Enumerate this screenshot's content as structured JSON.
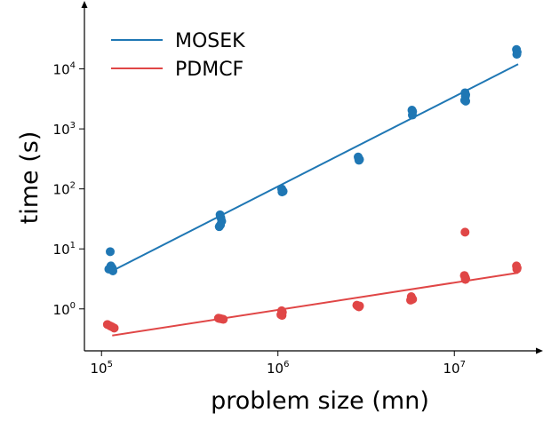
{
  "chart_data": {
    "type": "scatter",
    "xlabel": "problem size (mn)",
    "ylabel": "time (s)",
    "xscale": "log",
    "yscale": "log",
    "xlim": [
      80000,
      28000000
    ],
    "ylim": [
      0.2,
      100000
    ],
    "xticks": [
      {
        "value": 100000,
        "base": "10",
        "exp": "5"
      },
      {
        "value": 1000000,
        "base": "10",
        "exp": "6"
      },
      {
        "value": 10000000,
        "base": "10",
        "exp": "7"
      }
    ],
    "yticks": [
      {
        "value": 1,
        "base": "10",
        "exp": "0"
      },
      {
        "value": 10,
        "base": "10",
        "exp": "1"
      },
      {
        "value": 100,
        "base": "10",
        "exp": "2"
      },
      {
        "value": 1000,
        "base": "10",
        "exp": "3"
      },
      {
        "value": 10000,
        "base": "10",
        "exp": "4"
      }
    ],
    "grid": false,
    "legend_position": "top-left",
    "series": [
      {
        "name": "MOSEK",
        "color": "#1f77b4",
        "points": [
          [
            112000,
            9
          ],
          [
            113000,
            5.2
          ],
          [
            115000,
            4.8
          ],
          [
            110000,
            4.6
          ],
          [
            116000,
            4.3
          ],
          [
            470000,
            37
          ],
          [
            475000,
            33
          ],
          [
            480000,
            29
          ],
          [
            465000,
            23.5
          ],
          [
            472000,
            25
          ],
          [
            1050000,
            100
          ],
          [
            1060000,
            95
          ],
          [
            1070000,
            91
          ],
          [
            1055000,
            89
          ],
          [
            2850000,
            340
          ],
          [
            2870000,
            315
          ],
          [
            2900000,
            310
          ],
          [
            2880000,
            300
          ],
          [
            5750000,
            2050
          ],
          [
            5800000,
            1950
          ],
          [
            5780000,
            1700
          ],
          [
            11500000,
            4000
          ],
          [
            11600000,
            3700
          ],
          [
            11550000,
            3500
          ],
          [
            11450000,
            3000
          ],
          [
            11600000,
            2900
          ],
          [
            22500000,
            21000
          ],
          [
            22700000,
            19000
          ],
          [
            22600000,
            17500
          ]
        ],
        "fit": [
          [
            115000,
            4.3
          ],
          [
            23000000,
            12000
          ]
        ]
      },
      {
        "name": "PDMCF",
        "color": "#e04646",
        "points": [
          [
            108000,
            0.55
          ],
          [
            112000,
            0.52
          ],
          [
            115000,
            0.5
          ],
          [
            118000,
            0.48
          ],
          [
            460000,
            0.7
          ],
          [
            470000,
            0.69
          ],
          [
            480000,
            0.68
          ],
          [
            490000,
            0.67
          ],
          [
            1050000,
            0.93
          ],
          [
            1060000,
            0.88
          ],
          [
            1040000,
            0.8
          ],
          [
            1055000,
            0.78
          ],
          [
            2800000,
            1.15
          ],
          [
            2850000,
            1.1
          ],
          [
            2900000,
            1.12
          ],
          [
            2880000,
            1.08
          ],
          [
            5700000,
            1.6
          ],
          [
            5750000,
            1.5
          ],
          [
            5650000,
            1.4
          ],
          [
            5800000,
            1.45
          ],
          [
            11500000,
            19
          ],
          [
            11400000,
            3.6
          ],
          [
            11500000,
            3.4
          ],
          [
            11600000,
            3.2
          ],
          [
            11550000,
            3.1
          ],
          [
            22500000,
            5.2
          ],
          [
            22700000,
            4.8
          ],
          [
            22600000,
            4.6
          ]
        ],
        "fit": [
          [
            115000,
            0.36
          ],
          [
            23000000,
            4.0
          ]
        ]
      }
    ]
  }
}
